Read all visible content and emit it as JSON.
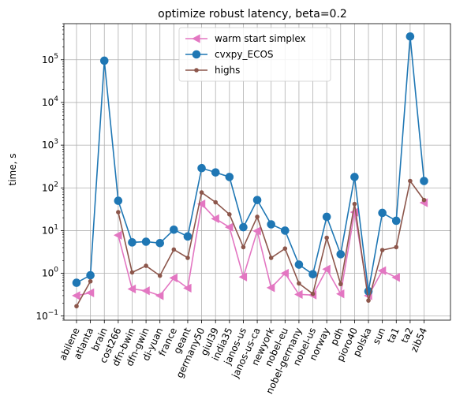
{
  "chart_data": {
    "type": "line",
    "title": "optimize robust latency, beta=0.2",
    "xlabel": "",
    "ylabel": "time, s",
    "yscale": "log",
    "ylim": [
      0.08,
      700000
    ],
    "y_ticks": [
      {
        "value": 0.1,
        "base": "10",
        "exp": "−1"
      },
      {
        "value": 1,
        "base": "10",
        "exp": "0"
      },
      {
        "value": 10,
        "base": "10",
        "exp": "1"
      },
      {
        "value": 100,
        "base": "10",
        "exp": "2"
      },
      {
        "value": 1000,
        "base": "10",
        "exp": "3"
      },
      {
        "value": 10000,
        "base": "10",
        "exp": "4"
      },
      {
        "value": 100000,
        "base": "10",
        "exp": "5"
      }
    ],
    "grid": true,
    "legend_position": "top-center",
    "categories": [
      "abilene",
      "atlanta",
      "brain",
      "cost266",
      "dfn-bwin",
      "dfn-gwin",
      "di-yuan",
      "france",
      "geant",
      "germany50",
      "giul39",
      "india35",
      "janos-us",
      "janos-us-ca",
      "newyork",
      "nobel-eu",
      "nobel-germany",
      "nobel-us",
      "norway",
      "pdh",
      "pioro40",
      "polska",
      "sun",
      "ta1",
      "ta2",
      "zib54"
    ],
    "series": [
      {
        "name": "warm start simplex",
        "color": "#e377c2",
        "marker": "triangle-left",
        "values": [
          0.3,
          0.35,
          null,
          7.8,
          0.43,
          0.39,
          0.3,
          0.78,
          0.45,
          42,
          19,
          12,
          0.82,
          9.8,
          0.46,
          1.0,
          0.32,
          0.31,
          1.25,
          0.33,
          27,
          0.3,
          1.15,
          0.8,
          null,
          45
        ]
      },
      {
        "name": "cvxpy_ECOS",
        "color": "#1f77b4",
        "marker": "circle",
        "values": [
          0.6,
          0.9,
          95000,
          50,
          5.3,
          5.5,
          5.1,
          10.5,
          7.3,
          290,
          230,
          180,
          12,
          52,
          14,
          10,
          1.6,
          0.95,
          21,
          2.8,
          180,
          0.38,
          26,
          17,
          350000,
          145
        ]
      },
      {
        "name": "highs",
        "color": "#8c564b",
        "marker": "dot",
        "values": [
          0.17,
          0.65,
          null,
          27,
          1.05,
          1.5,
          0.88,
          3.6,
          2.3,
          78,
          46,
          24,
          4.1,
          21,
          2.3,
          3.8,
          0.58,
          0.33,
          6.8,
          0.56,
          42,
          0.23,
          3.5,
          4.1,
          145,
          52
        ]
      }
    ]
  }
}
